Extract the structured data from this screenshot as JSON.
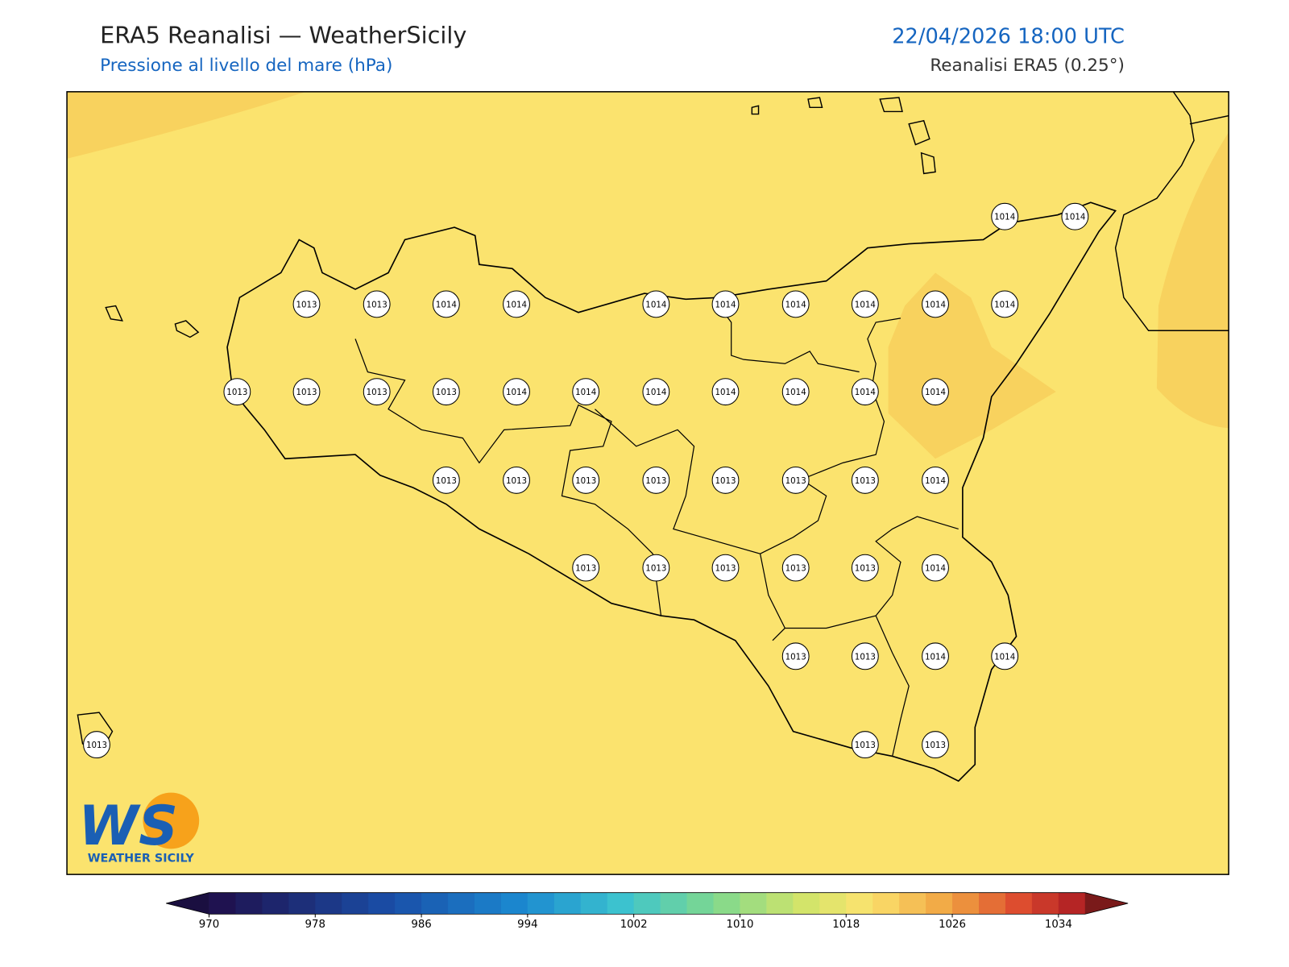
{
  "header": {
    "title": "ERA5 Reanalisi — WeatherSicily",
    "subtitle": "Pressione al livello del mare (hPa)",
    "datetime": "22/04/2026 18:00 UTC",
    "source": "Reanalisi ERA5 (0.25°)"
  },
  "stations": [
    {
      "value": 1014
    },
    {
      "value": 1014
    },
    {
      "value": 1013
    },
    {
      "value": 1013
    },
    {
      "value": 1014
    },
    {
      "value": 1014
    },
    {
      "value": 1014
    },
    {
      "value": 1014
    },
    {
      "value": 1014
    },
    {
      "value": 1014
    },
    {
      "value": 1014
    },
    {
      "value": 1014
    },
    {
      "value": 1013
    },
    {
      "value": 1013
    },
    {
      "value": 1013
    },
    {
      "value": 1013
    },
    {
      "value": 1014
    },
    {
      "value": 1014
    },
    {
      "value": 1014
    },
    {
      "value": 1014
    },
    {
      "value": 1014
    },
    {
      "value": 1014
    },
    {
      "value": 1014
    },
    {
      "value": 1013
    },
    {
      "value": 1013
    },
    {
      "value": 1013
    },
    {
      "value": 1013
    },
    {
      "value": 1013
    },
    {
      "value": 1013
    },
    {
      "value": 1013
    },
    {
      "value": 1014
    },
    {
      "value": 1013
    },
    {
      "value": 1013
    },
    {
      "value": 1013
    },
    {
      "value": 1013
    },
    {
      "value": 1013
    },
    {
      "value": 1014
    },
    {
      "value": 1013
    },
    {
      "value": 1013
    },
    {
      "value": 1014
    },
    {
      "value": 1014
    },
    {
      "value": 1013
    },
    {
      "value": 1013
    },
    {
      "value": 1013
    }
  ],
  "colorbar": {
    "ticks": [
      970,
      978,
      986,
      994,
      1002,
      1010,
      1018,
      1026,
      1034
    ]
  },
  "logo": {
    "mark": "WS",
    "text": "WEATHER SICILY"
  }
}
